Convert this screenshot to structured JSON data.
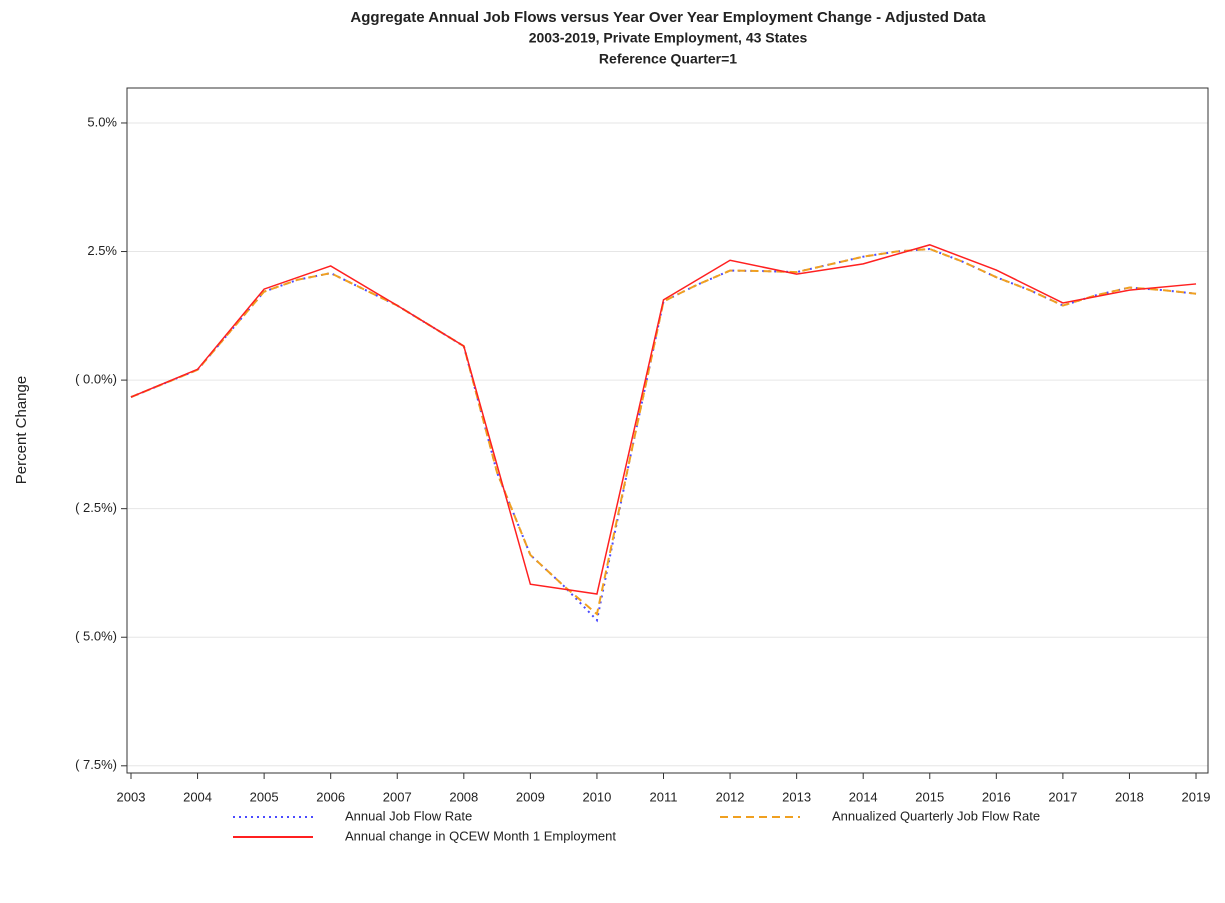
{
  "chart_data": {
    "type": "line",
    "title": "Aggregate Annual Job Flows versus Year Over Year Employment Change - Adjusted Data",
    "subtitle": [
      "2003-2019, Private Employment, 43 States",
      "Reference Quarter=1"
    ],
    "y_label": "Percent Change",
    "xlim": [
      2002.94,
      2019.18
    ],
    "xticks": [
      2003,
      2004,
      2005,
      2006,
      2007,
      2008,
      2009,
      2010,
      2011,
      2012,
      2013,
      2014,
      2015,
      2016,
      2017,
      2018,
      2019
    ],
    "ylim": [
      -7.64,
      5.68
    ],
    "yticks": [
      {
        "value": 5,
        "label": "5.0%"
      },
      {
        "value": 2.5,
        "label": "2.5%"
      },
      {
        "value": 0,
        "label": "( 0.0%)"
      },
      {
        "value": -2.5,
        "label": "( 2.5%)"
      },
      {
        "value": -5,
        "label": "( 5.0%)"
      },
      {
        "value": -7.5,
        "label": "( 7.5%)"
      }
    ],
    "grid": true,
    "series": [
      {
        "name": "Annual Job Flow Rate",
        "color": "#4a4aff",
        "dash": "dotted",
        "x": [
          2003,
          2004,
          2005,
          2005.5,
          2006,
          2007,
          2008,
          2008.5,
          2009,
          2009.5,
          2010,
          2010.5,
          2011,
          2011.5,
          2012,
          2012.5,
          2013,
          2013.5,
          2014,
          2014.5,
          2015,
          2015.5,
          2016,
          2016.5,
          2017,
          2017.5,
          2018,
          2018.5,
          2019
        ],
        "values": [
          -0.33,
          0.2,
          1.72,
          1.95,
          2.08,
          1.45,
          0.66,
          -1.8,
          -3.4,
          -4.0,
          -4.67,
          -1.5,
          1.53,
          1.85,
          2.13,
          2.12,
          2.1,
          2.25,
          2.4,
          2.5,
          2.55,
          2.3,
          2.0,
          1.75,
          1.45,
          1.65,
          1.8,
          1.75,
          1.68
        ]
      },
      {
        "name": "Annualized Quarterly Job Flow Rate",
        "color": "#f0a020",
        "dash": "dashed",
        "x": [
          2003,
          2004,
          2005,
          2005.5,
          2006,
          2007,
          2008,
          2008.5,
          2009,
          2009.5,
          2010,
          2010.5,
          2011,
          2011.5,
          2012,
          2012.5,
          2013,
          2013.5,
          2014,
          2014.5,
          2015,
          2015.5,
          2016,
          2016.5,
          2017,
          2017.5,
          2018,
          2018.5,
          2019
        ],
        "values": [
          -0.33,
          0.2,
          1.72,
          1.95,
          2.08,
          1.45,
          0.66,
          -1.8,
          -3.4,
          -4.0,
          -4.55,
          -1.5,
          1.53,
          1.85,
          2.13,
          2.12,
          2.1,
          2.25,
          2.4,
          2.5,
          2.55,
          2.3,
          2.0,
          1.75,
          1.45,
          1.65,
          1.8,
          1.75,
          1.68
        ]
      },
      {
        "name": "Annual change in QCEW Month 1 Employment",
        "color": "#ff2020",
        "dash": "solid",
        "x": [
          2003,
          2004,
          2005,
          2006,
          2007,
          2008,
          2009,
          2010,
          2011,
          2012,
          2013,
          2014,
          2015,
          2016,
          2017,
          2018,
          2019
        ],
        "values": [
          -0.33,
          0.21,
          1.77,
          2.22,
          1.45,
          0.66,
          -3.97,
          -4.16,
          1.56,
          2.33,
          2.06,
          2.26,
          2.63,
          2.14,
          1.5,
          1.75,
          1.87
        ]
      }
    ]
  }
}
